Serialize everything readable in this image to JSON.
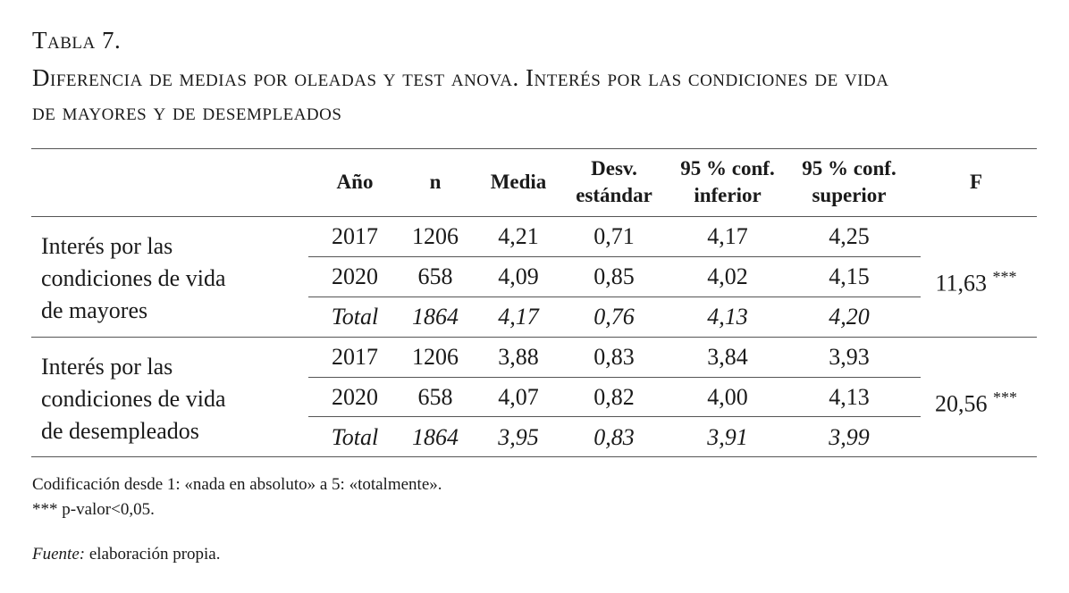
{
  "title": {
    "table_number": "Tabla 7.",
    "caption_line1": "Diferencia de medias por oleadas y test anova. Interés por las condiciones de vida",
    "caption_line2": "de mayores y de desempleados"
  },
  "headers": [
    [
      "Año"
    ],
    [
      "n"
    ],
    [
      "Media"
    ],
    [
      "Desv.",
      "estándar"
    ],
    [
      "95 % conf.",
      "inferior"
    ],
    [
      "95 % conf.",
      "superior"
    ],
    [
      "F"
    ]
  ],
  "groups": [
    {
      "label": [
        "Interés por las",
        "condiciones de vida",
        "de mayores"
      ],
      "rows": [
        [
          "2017",
          "1206",
          "4,21",
          "0,71",
          "4,17",
          "4,25"
        ],
        [
          "2020",
          "658",
          "4,09",
          "0,85",
          "4,02",
          "4,15"
        ],
        [
          "Total",
          "1864",
          "4,17",
          "0,76",
          "4,13",
          "4,20"
        ]
      ],
      "f": "11,63",
      "sig": "***"
    },
    {
      "label": [
        "Interés por las",
        "condiciones de vida",
        "de desempleados"
      ],
      "rows": [
        [
          "2017",
          "1206",
          "3,88",
          "0,83",
          "3,84",
          "3,93"
        ],
        [
          "2020",
          "658",
          "4,07",
          "0,82",
          "4,00",
          "4,13"
        ],
        [
          "Total",
          "1864",
          "3,95",
          "0,83",
          "3,91",
          "3,99"
        ]
      ],
      "f": "20,56",
      "sig": "***"
    }
  ],
  "notes": {
    "coding": "Codificación desde 1: «nada en absoluto» a 5: «totalmente».",
    "pvalue": "*** p-valor<0,05.",
    "source_label": "Fuente:",
    "source_text": " elaboración propia."
  }
}
